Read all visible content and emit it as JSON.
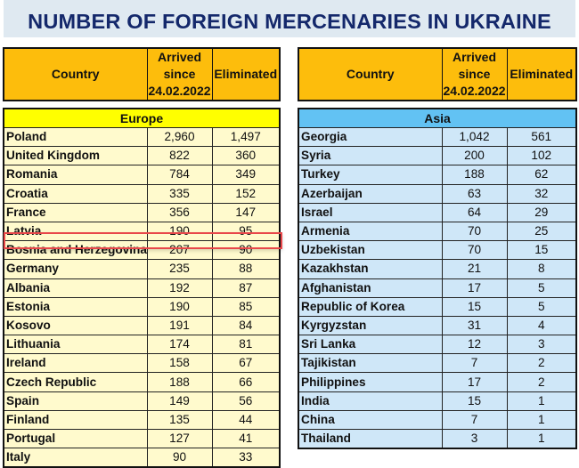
{
  "title": "NUMBER OF FOREIGN MERCENARIES IN UKRAINE",
  "columns": {
    "country": "Country",
    "arrived": [
      "Arrived",
      "since",
      "24.02.2022"
    ],
    "eliminated": "Eliminated"
  },
  "colors": {
    "title_text": "#14286b",
    "title_bg": "#dfe9f1",
    "header_bg": "#fdbd0c",
    "europe_band": "#ffff00",
    "europe_rows": "#fffacd",
    "asia_band": "#62c2f3",
    "asia_rows": "#cfe7f8",
    "highlight": "#e8474a"
  },
  "europe": {
    "label": "Europe",
    "highlighted_row": "Croatia",
    "rows": [
      {
        "country": "Poland",
        "arrived": "2,960",
        "eliminated": "1,497"
      },
      {
        "country": "United Kingdom",
        "arrived": "822",
        "eliminated": "360"
      },
      {
        "country": "Romania",
        "arrived": "784",
        "eliminated": "349"
      },
      {
        "country": "Croatia",
        "arrived": "335",
        "eliminated": "152"
      },
      {
        "country": "France",
        "arrived": "356",
        "eliminated": "147"
      },
      {
        "country": "Latvia",
        "arrived": "190",
        "eliminated": "95"
      },
      {
        "country": "Bosnia and Herzegovina",
        "arrived": "207",
        "eliminated": "90"
      },
      {
        "country": "Germany",
        "arrived": "235",
        "eliminated": "88"
      },
      {
        "country": "Albania",
        "arrived": "192",
        "eliminated": "87"
      },
      {
        "country": "Estonia",
        "arrived": "190",
        "eliminated": "85"
      },
      {
        "country": "Kosovo",
        "arrived": "191",
        "eliminated": "84"
      },
      {
        "country": "Lithuania",
        "arrived": "174",
        "eliminated": "81"
      },
      {
        "country": "Ireland",
        "arrived": "158",
        "eliminated": "67"
      },
      {
        "country": "Czech Republic",
        "arrived": "188",
        "eliminated": "66"
      },
      {
        "country": "Spain",
        "arrived": "149",
        "eliminated": "56"
      },
      {
        "country": "Finland",
        "arrived": "135",
        "eliminated": "44"
      },
      {
        "country": "Portugal",
        "arrived": "127",
        "eliminated": "41"
      },
      {
        "country": "Italy",
        "arrived": "90",
        "eliminated": "33"
      }
    ]
  },
  "asia": {
    "label": "Asia",
    "rows": [
      {
        "country": "Georgia",
        "arrived": "1,042",
        "eliminated": "561"
      },
      {
        "country": "Syria",
        "arrived": "200",
        "eliminated": "102"
      },
      {
        "country": "Turkey",
        "arrived": "188",
        "eliminated": "62"
      },
      {
        "country": "Azerbaijan",
        "arrived": "63",
        "eliminated": "32"
      },
      {
        "country": "Israel",
        "arrived": "64",
        "eliminated": "29"
      },
      {
        "country": "Armenia",
        "arrived": "70",
        "eliminated": "25"
      },
      {
        "country": "Uzbekistan",
        "arrived": "70",
        "eliminated": "15"
      },
      {
        "country": "Kazakhstan",
        "arrived": "21",
        "eliminated": "8"
      },
      {
        "country": "Afghanistan",
        "arrived": "17",
        "eliminated": "5"
      },
      {
        "country": "Republic of Korea",
        "arrived": "15",
        "eliminated": "5"
      },
      {
        "country": "Kyrgyzstan",
        "arrived": "31",
        "eliminated": "4"
      },
      {
        "country": "Sri Lanka",
        "arrived": "12",
        "eliminated": "3"
      },
      {
        "country": "Tajikistan",
        "arrived": "7",
        "eliminated": "2"
      },
      {
        "country": "Philippines",
        "arrived": "17",
        "eliminated": "2"
      },
      {
        "country": "India",
        "arrived": "15",
        "eliminated": "1"
      },
      {
        "country": "China",
        "arrived": "7",
        "eliminated": "1"
      },
      {
        "country": "Thailand",
        "arrived": "3",
        "eliminated": "1"
      }
    ]
  }
}
